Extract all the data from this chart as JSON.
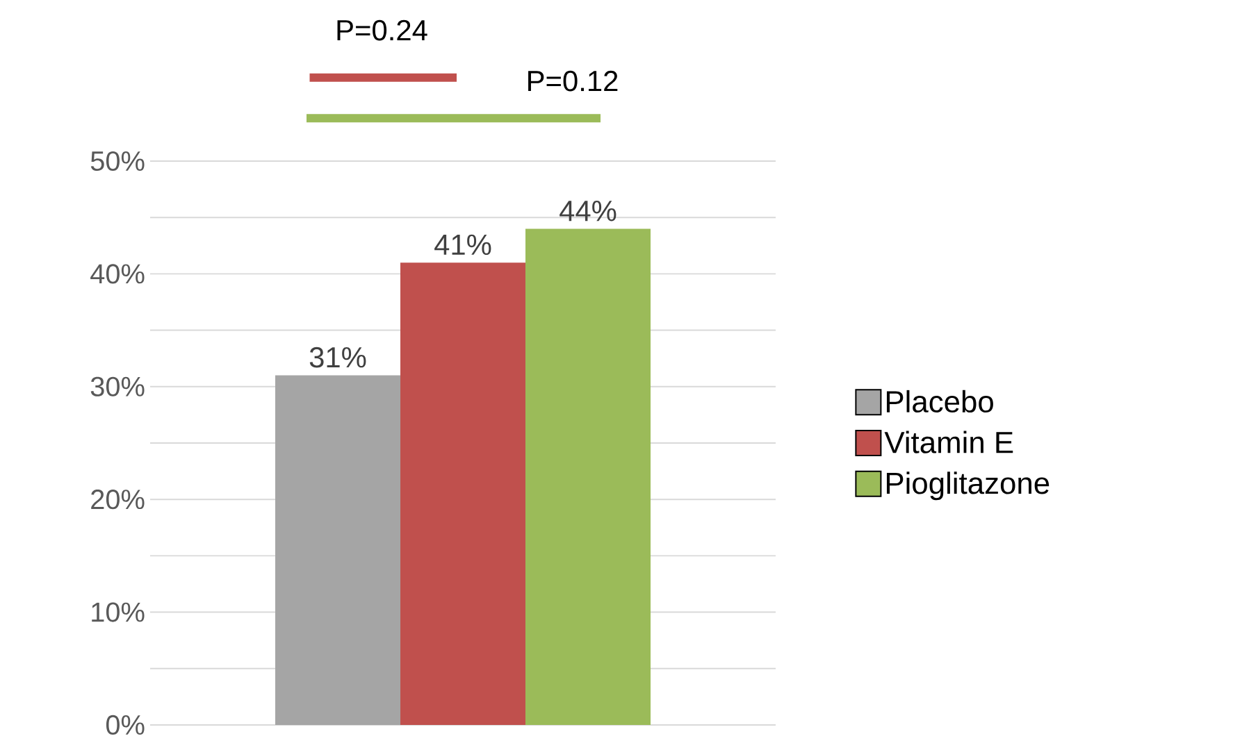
{
  "chart_data": {
    "type": "bar",
    "categories": [
      null
    ],
    "series": [
      {
        "name": "Placebo",
        "color": "#a5a5a5",
        "values": [
          31
        ],
        "value_labels": [
          "31%"
        ]
      },
      {
        "name": "Vitamin E",
        "color": "#c0504d",
        "values": [
          41
        ],
        "value_labels": [
          "41%"
        ]
      },
      {
        "name": "Pioglitazone",
        "color": "#9bbb59",
        "values": [
          44
        ],
        "value_labels": [
          "44%"
        ]
      }
    ],
    "ylim": [
      0,
      50
    ],
    "yticks": [
      {
        "value": 0,
        "label": "0%"
      },
      {
        "value": 5,
        "label": null
      },
      {
        "value": 10,
        "label": "10%"
      },
      {
        "value": 15,
        "label": null
      },
      {
        "value": 20,
        "label": "20%"
      },
      {
        "value": 25,
        "label": null
      },
      {
        "value": 30,
        "label": "30%"
      },
      {
        "value": 35,
        "label": null
      },
      {
        "value": 40,
        "label": "40%"
      },
      {
        "value": 45,
        "label": null
      },
      {
        "value": 50,
        "label": "50%"
      }
    ],
    "grid": "y",
    "legend": "right",
    "annotations": [
      "P=0.24",
      "P=0.12"
    ]
  }
}
